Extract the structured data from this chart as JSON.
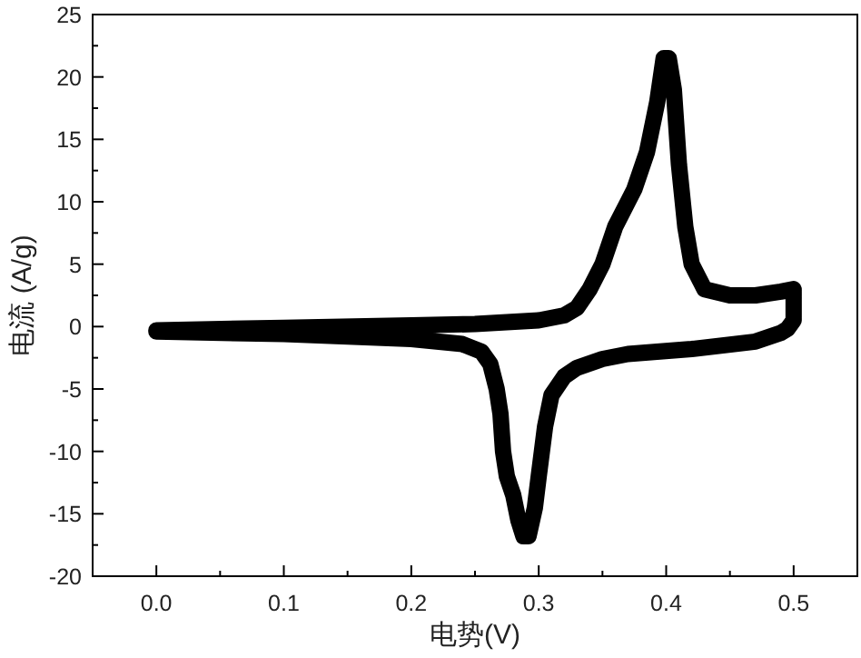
{
  "chart_data": {
    "type": "line",
    "xlabel": "电势(V)",
    "ylabel": "电流 (A/g)",
    "xlim": [
      -0.05,
      0.55
    ],
    "ylim": [
      -20,
      25
    ],
    "xticks": [
      {
        "value": 0,
        "label": "0.0"
      },
      {
        "value": 0.05,
        "label": null
      },
      {
        "value": 0.1,
        "label": "0.1"
      },
      {
        "value": 0.15,
        "label": null
      },
      {
        "value": 0.2,
        "label": "0.2"
      },
      {
        "value": 0.25,
        "label": null
      },
      {
        "value": 0.3,
        "label": "0.3"
      },
      {
        "value": 0.35,
        "label": null
      },
      {
        "value": 0.4,
        "label": "0.4"
      },
      {
        "value": 0.45,
        "label": null
      },
      {
        "value": 0.5,
        "label": "0.5"
      }
    ],
    "yticks": [
      -20,
      {
        "value": -17.5,
        "label": null
      },
      -15,
      {
        "value": -12.5,
        "label": null
      },
      -10,
      {
        "value": -7.5,
        "label": null
      },
      -5,
      {
        "value": -2.5,
        "label": null
      },
      0,
      {
        "value": 2.5,
        "label": null
      },
      5,
      {
        "value": 7.5,
        "label": null
      },
      10,
      {
        "value": 12.5,
        "label": null
      },
      15,
      {
        "value": 17.5,
        "label": null
      },
      20,
      {
        "value": 22.5,
        "label": null
      },
      25
    ],
    "grid": false,
    "line_style": "solid",
    "series": [
      {
        "color": "#000000",
        "x": [
          0,
          0.1,
          0.2,
          0.25,
          0.3,
          0.32,
          0.33,
          0.34,
          0.35,
          0.36,
          0.37,
          0.375,
          0.385,
          0.393,
          0.398,
          0.402,
          0.406,
          0.41,
          0.415,
          0.42,
          0.43,
          0.45,
          0.47,
          0.49,
          0.5,
          0.5,
          0.495,
          0.49,
          0.47,
          0.42,
          0.37,
          0.35,
          0.33,
          0.32,
          0.31,
          0.305,
          0.3,
          0.297,
          0.292,
          0.288,
          0.284,
          0.28,
          0.275,
          0.272,
          0.27,
          0.267,
          0.262,
          0.255,
          0.24,
          0.2,
          0.1,
          0
        ],
        "values": [
          -0.3,
          -0.1,
          0.1,
          0.2,
          0.5,
          0.9,
          1.5,
          3,
          5,
          8,
          10,
          11,
          14,
          18,
          21.5,
          21.5,
          19,
          13,
          8,
          5,
          3,
          2.5,
          2.5,
          2.8,
          3,
          0.5,
          -0.2,
          -0.5,
          -1.2,
          -1.8,
          -2.2,
          -2.6,
          -3.3,
          -4,
          -5.5,
          -8,
          -12,
          -14.5,
          -16.8,
          -16.8,
          -15.5,
          -13.5,
          -12,
          -10,
          -7,
          -5,
          -3,
          -2,
          -1.4,
          -1,
          -0.6,
          -0.4
        ]
      }
    ]
  }
}
